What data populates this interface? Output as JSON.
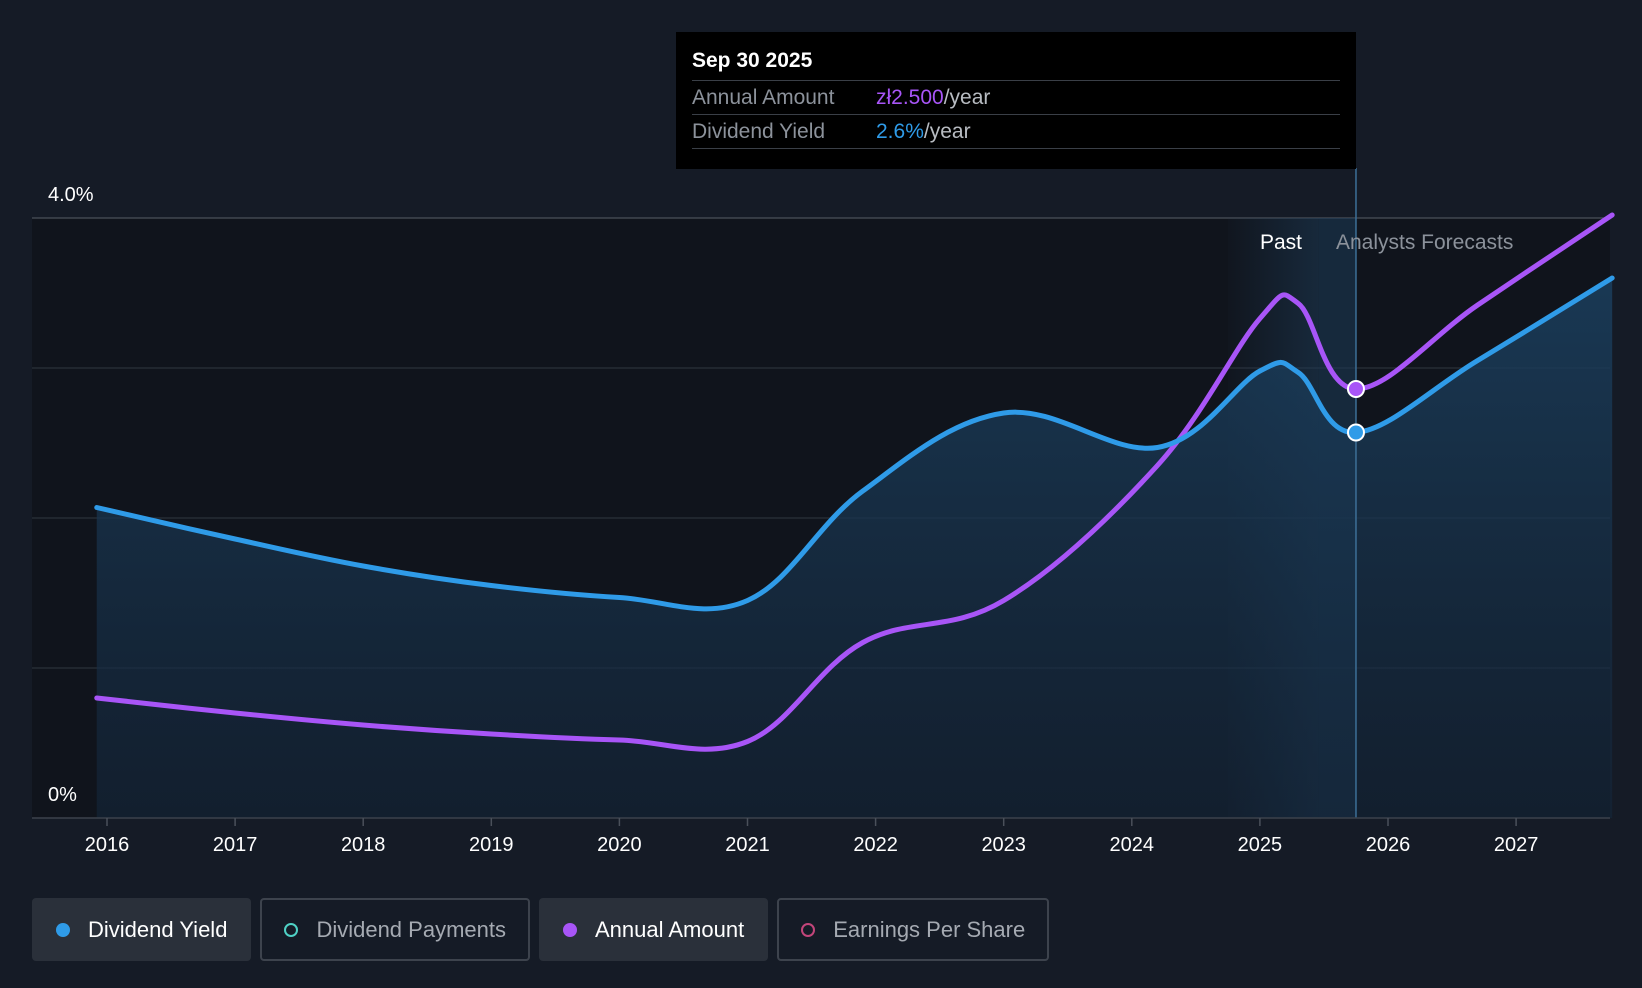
{
  "tooltip": {
    "date": "Sep 30 2025",
    "rows": [
      {
        "label": "Annual Amount",
        "value": "zł2.500",
        "unit": "/year"
      },
      {
        "label": "Dividend Yield",
        "value": "2.6%",
        "unit": "/year"
      }
    ]
  },
  "regions": {
    "past": "Past",
    "forecast": "Analysts Forecasts"
  },
  "legend": [
    {
      "label": "Dividend Yield",
      "active": true,
      "color": "#2f9be8",
      "marker": "filled-dot"
    },
    {
      "label": "Dividend Payments",
      "active": false,
      "color": "#4fd1c5",
      "marker": "hollow-dot"
    },
    {
      "label": "Annual Amount",
      "active": true,
      "color": "#a855f7",
      "marker": "filled-dot"
    },
    {
      "label": "Earnings Per Share",
      "active": false,
      "color": "#c2457a",
      "marker": "hollow-dot"
    }
  ],
  "chart_data": {
    "type": "area",
    "y_tick_labels": [
      "4.0%",
      "0%"
    ],
    "ylim": [
      0,
      4.0
    ],
    "xlim": [
      2015.92,
      2027.75
    ],
    "x_tick_labels": [
      "2016",
      "2017",
      "2018",
      "2019",
      "2020",
      "2021",
      "2022",
      "2023",
      "2024",
      "2025",
      "2026",
      "2027"
    ],
    "x_ticks": [
      2016,
      2017,
      2018,
      2019,
      2020,
      2021,
      2022,
      2023,
      2024,
      2025,
      2026,
      2027
    ],
    "grid": true,
    "highlight_date": 2025.75,
    "past_band_start": 2024.75,
    "forecast_band_start": 2025.46,
    "series": [
      {
        "name": "Dividend Yield",
        "color": "#2f9be8",
        "filled": true,
        "points": [
          [
            2015.92,
            2.07
          ],
          [
            2017,
            1.86
          ],
          [
            2018,
            1.68
          ],
          [
            2019,
            1.55
          ],
          [
            2020,
            1.47
          ],
          [
            2021,
            1.45
          ],
          [
            2021.9,
            2.18
          ],
          [
            2023,
            2.7
          ],
          [
            2024.2,
            2.47
          ],
          [
            2025,
            2.98
          ],
          [
            2025.3,
            2.97
          ],
          [
            2025.75,
            2.57
          ],
          [
            2026.7,
            3.05
          ],
          [
            2027.75,
            3.6
          ]
        ]
      },
      {
        "name": "Annual Amount",
        "color": "#a855f7",
        "filled": false,
        "points": [
          [
            2015.92,
            0.8
          ],
          [
            2017,
            0.7
          ],
          [
            2018,
            0.62
          ],
          [
            2019,
            0.56
          ],
          [
            2020,
            0.52
          ],
          [
            2021,
            0.51
          ],
          [
            2021.9,
            1.17
          ],
          [
            2023,
            1.45
          ],
          [
            2024.2,
            2.35
          ],
          [
            2025,
            3.33
          ],
          [
            2025.3,
            3.43
          ],
          [
            2025.75,
            2.86
          ],
          [
            2026.7,
            3.42
          ],
          [
            2027.75,
            4.02
          ]
        ]
      }
    ]
  }
}
